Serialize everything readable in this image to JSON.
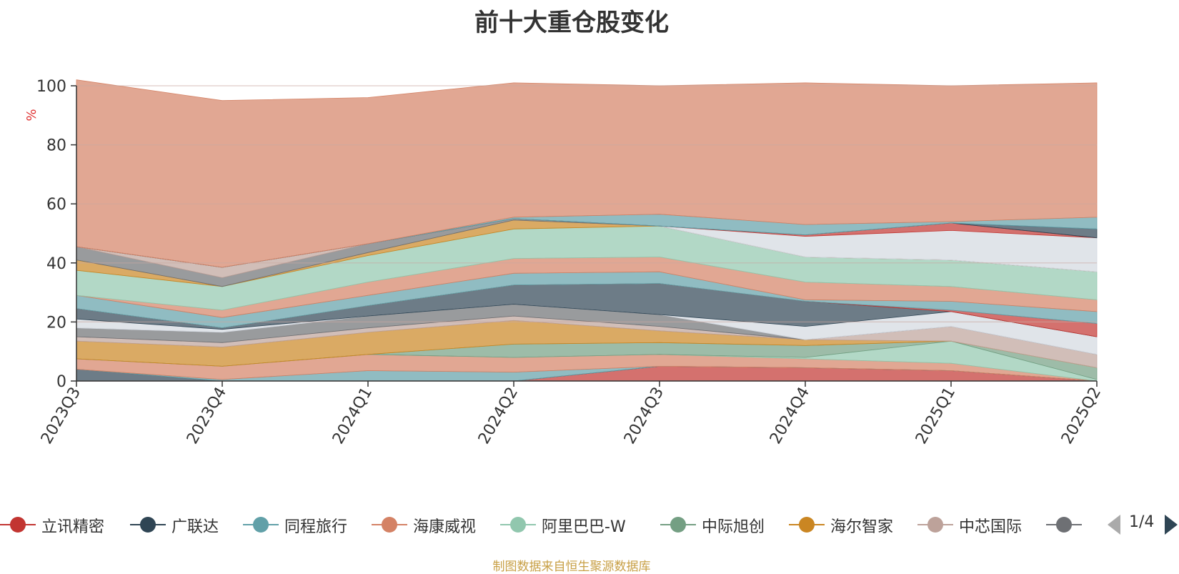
{
  "title": "前十大重仓股变化",
  "source_note": "制图数据来自恒生聚源数据库",
  "legend": {
    "page": "1/4",
    "items": [
      {
        "name": "立讯精密",
        "color": "#c23531"
      },
      {
        "name": "广联达",
        "color": "#2f4554"
      },
      {
        "name": "同程旅行",
        "color": "#61a0a8"
      },
      {
        "name": "海康威视",
        "color": "#d48265"
      },
      {
        "name": "阿里巴巴-W",
        "color": "#91c7ae"
      },
      {
        "name": "中际旭创",
        "color": "#749f83"
      },
      {
        "name": "海尔智家",
        "color": "#ca8622"
      },
      {
        "name": "中芯国际",
        "color": "#bda29a"
      },
      {
        "name": "",
        "color": "#6e7074"
      }
    ]
  },
  "chart_data": {
    "type": "area",
    "stacked": true,
    "title": "前十大重仓股变化",
    "ylabel": "%",
    "ylim": [
      0,
      100
    ],
    "yticks": [
      0,
      20,
      40,
      60,
      80,
      100
    ],
    "grid": true,
    "legend_position": "bottom",
    "categories": [
      "2023Q3",
      "2023Q4",
      "2024Q1",
      "2024Q2",
      "2024Q3",
      "2024Q4",
      "2025Q1",
      "2025Q2"
    ],
    "series": [
      {
        "color": "#c23531",
        "values": [
          0,
          0,
          0,
          0,
          5,
          4.5,
          3.5,
          0
        ]
      },
      {
        "color": "#2f4554",
        "values": [
          4,
          0,
          0,
          0,
          0,
          0,
          0,
          0
        ]
      },
      {
        "color": "#61a0a8",
        "values": [
          0,
          0.5,
          3.5,
          3,
          0,
          0,
          0,
          0
        ]
      },
      {
        "color": "#d48265",
        "values": [
          3.5,
          4.5,
          5.5,
          5,
          4,
          3,
          2.5,
          0
        ]
      },
      {
        "color": "#91c7ae",
        "values": [
          0,
          0,
          0,
          0,
          0,
          0.5,
          7.5,
          0.5
        ]
      },
      {
        "color": "#749f83",
        "values": [
          0,
          0,
          0,
          4.5,
          4,
          4,
          0,
          4
        ]
      },
      {
        "color": "#ca8622",
        "values": [
          6,
          6.5,
          7.5,
          8,
          4,
          2,
          0,
          0
        ]
      },
      {
        "color": "#bda29a",
        "values": [
          1.5,
          1.5,
          1.5,
          1.5,
          1.5,
          0,
          5,
          4.5
        ]
      },
      {
        "color": "#6e7074",
        "values": [
          3,
          3.5,
          4,
          4,
          4,
          0,
          0,
          0
        ]
      },
      {
        "color": "#d3d8e0",
        "values": [
          3,
          1,
          0,
          0,
          0,
          4.5,
          5,
          6
        ]
      },
      {
        "color": "#2f4554",
        "values": [
          3.5,
          0.5,
          3.5,
          6.5,
          10.5,
          8.5,
          0,
          0
        ]
      },
      {
        "color": "#c23531",
        "values": [
          0,
          0,
          0,
          0,
          0,
          0,
          0.5,
          4.5
        ]
      },
      {
        "color": "#61a0a8",
        "values": [
          4.5,
          3.5,
          3.5,
          4,
          4,
          0.5,
          3,
          4
        ]
      },
      {
        "color": "#d48265",
        "values": [
          0,
          2.5,
          4.5,
          5,
          5,
          6,
          5,
          4
        ]
      },
      {
        "color": "#91c7ae",
        "values": [
          8.5,
          8,
          9,
          10,
          10.5,
          8.5,
          9,
          9.5
        ]
      },
      {
        "color": "#ca8622",
        "values": [
          3.5,
          0,
          1,
          3,
          0,
          0,
          0,
          0
        ]
      },
      {
        "color": "#6e7074",
        "values": [
          4.5,
          3,
          3,
          0.5,
          0,
          0,
          0,
          0
        ]
      },
      {
        "color": "#bda29a",
        "values": [
          0,
          3.5,
          0,
          0,
          0,
          0,
          0,
          0
        ]
      },
      {
        "color": "#d3d8e0",
        "values": [
          0,
          0,
          0,
          0,
          0,
          7,
          10,
          11.5
        ]
      },
      {
        "color": "#c23531",
        "values": [
          0,
          0,
          0,
          0,
          0,
          0.5,
          2.5,
          0
        ]
      },
      {
        "color": "#2f4554",
        "values": [
          0,
          0,
          0,
          0,
          0,
          0,
          0,
          3
        ]
      },
      {
        "color": "#61a0a8",
        "values": [
          0,
          0,
          0,
          0.5,
          4,
          3.5,
          0.5,
          4
        ]
      },
      {
        "color": "#d48265",
        "values": [
          56.5,
          56.5,
          49.5,
          45.5,
          43.5,
          48,
          46,
          45.5
        ]
      }
    ]
  }
}
